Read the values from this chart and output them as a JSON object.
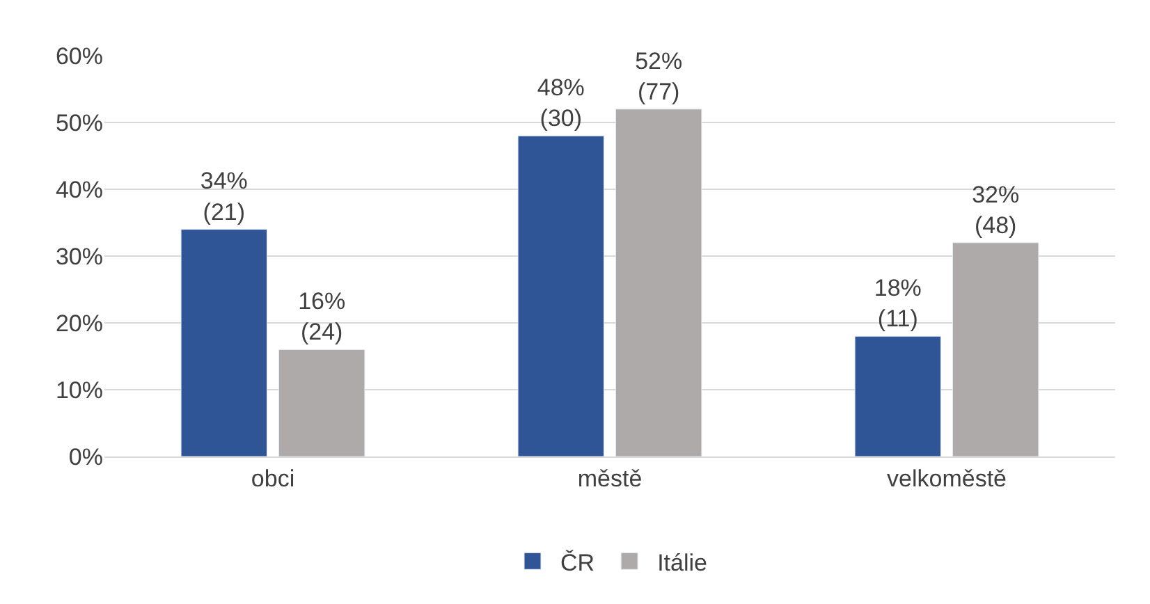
{
  "chart_data": {
    "type": "bar",
    "categories": [
      "obci",
      "městě",
      "velkoměstě"
    ],
    "series": [
      {
        "name": "ČR",
        "color": "#2f5597",
        "values": [
          34,
          48,
          18
        ],
        "value_labels": [
          "34%\n(21)",
          "48%\n(30)",
          "18%\n(11)"
        ]
      },
      {
        "name": "Itálie",
        "color": "#aeaaaa",
        "values": [
          16,
          52,
          32
        ],
        "value_labels": [
          "16%\n(24)",
          "52%\n(77)",
          "32%\n(48)"
        ]
      }
    ],
    "ylim": [
      0,
      60
    ],
    "yticks": [
      {
        "value": 0,
        "label": "0%"
      },
      {
        "value": 10,
        "label": "10%"
      },
      {
        "value": 20,
        "label": "20%"
      },
      {
        "value": 30,
        "label": "30%"
      },
      {
        "value": 40,
        "label": "40%"
      },
      {
        "value": 50,
        "label": "50%"
      },
      {
        "value": 60,
        "label": "60%"
      }
    ],
    "grid": "y",
    "legend": "bottom"
  }
}
